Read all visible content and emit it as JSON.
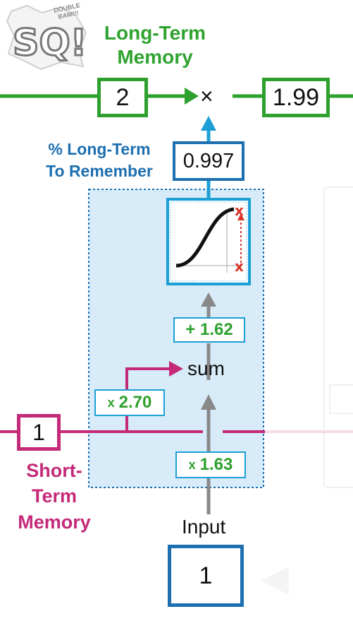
{
  "logo": {
    "text": "SQ!",
    "tagline": "DOUBLE BAM!!!"
  },
  "long_term": {
    "title_line1": "Long-Term",
    "title_line2": "Memory",
    "input_value": "2",
    "operator": "×",
    "output_value": "1.99"
  },
  "forget_gate": {
    "label_line1": "% Long-Term",
    "label_line2": "To Remember",
    "output_value": "0.997",
    "bias": "+ 1.62",
    "sum_label": "sum",
    "short_term_weight": "2.70",
    "input_weight": "1.63",
    "weight_symbol": "x"
  },
  "short_term": {
    "value": "1",
    "label_line1": "Short-",
    "label_line2": "Term",
    "label_line3": "Memory"
  },
  "input": {
    "label": "Input",
    "value": "1"
  },
  "colors": {
    "green": "#2ea02e",
    "blue": "#1d6fb0",
    "magenta": "#c42a78",
    "panel": "#d7ecf8",
    "red_x": "#d9332a"
  },
  "icons": [
    "sigmoid-activation-icon",
    "arrow-icon"
  ]
}
